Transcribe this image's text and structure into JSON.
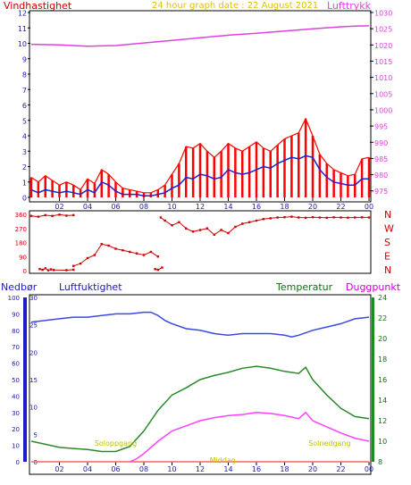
{
  "colors": {
    "wind_label": "#cc0000",
    "pressure": "#e040e0",
    "date": "#e0c000",
    "wind_avg": "#2020d0",
    "gust": "#ff0000",
    "direction": "#cc0000",
    "humidity": "#2020a0",
    "humidity_line": "#3a4ae0",
    "precip": "#1c1ccc",
    "temp": "#107010",
    "temp_line": "#2a8a2a",
    "dew": "#cc00cc",
    "dew_line": "#ff40ff",
    "sun": "#c0c000",
    "frame": "#000000"
  },
  "top_chart": {
    "title": "24 hour graph date : 22 August 2021",
    "left_label": "Vindhastighet",
    "right_label": "Lufttrykk",
    "left_ticks": [
      "12",
      "11",
      "10",
      "9",
      "8",
      "7",
      "6",
      "5",
      "4",
      "3",
      "2",
      "1",
      "0"
    ],
    "right_ticks": [
      "1030",
      "1025",
      "1020",
      "1015",
      "1010",
      "1005",
      "1000",
      "995",
      "990",
      "985",
      "980",
      "975"
    ],
    "x_ticks": [
      "02",
      "04",
      "06",
      "08",
      "10",
      "12",
      "14",
      "16",
      "18",
      "20",
      "22",
      "00"
    ]
  },
  "direction_chart": {
    "left_ticks": [
      "360",
      "270",
      "180",
      "90",
      "0"
    ],
    "right_labels": [
      "N",
      "W",
      "S",
      "E",
      "N"
    ]
  },
  "bottom_chart": {
    "precip_label": "Nedbør",
    "humidity_label": "Luftfuktighet",
    "temp_label": "Temperatur",
    "dew_label": "Duggpunkt",
    "precip_ticks": [
      "30",
      "25",
      "20",
      "15",
      "10",
      "5",
      "0"
    ],
    "humidity_ticks": [
      "100",
      "90",
      "80",
      "70",
      "60",
      "50",
      "40",
      "30",
      "20",
      "10",
      "0"
    ],
    "temp_ticks": [
      "24",
      "22",
      "20",
      "18",
      "16",
      "14",
      "12",
      "10",
      "8"
    ],
    "x_ticks": [
      "02",
      "04",
      "06",
      "08",
      "10",
      "12",
      "14",
      "16",
      "18",
      "20",
      "22",
      "00"
    ],
    "sunrise_label": "Soloppgang",
    "sunset_label": "Solnedgang",
    "midday_label": "Middag"
  },
  "chart_data": {
    "type": "line",
    "x_unit": "hour of day",
    "wind": {
      "ylim": [
        0,
        12
      ],
      "series": [
        {
          "name": "Vindhastighet",
          "x": [
            0,
            0.5,
            1,
            1.5,
            2,
            2.5,
            3,
            3.5,
            4,
            4.5,
            5,
            5.5,
            6,
            6.5,
            7,
            7.5,
            8,
            8.5,
            9,
            9.5,
            10,
            10.5,
            11,
            11.5,
            12,
            12.5,
            13,
            13.5,
            14,
            14.5,
            15,
            15.5,
            16,
            16.5,
            17,
            17.5,
            18,
            18.5,
            19,
            19.5,
            20,
            20.5,
            21,
            21.5,
            22,
            22.5,
            23,
            23.5,
            24
          ],
          "y": [
            0.5,
            0.3,
            0.5,
            0.4,
            0.3,
            0.4,
            0.3,
            0.2,
            0.5,
            0.3,
            1,
            0.8,
            0.4,
            0.2,
            0.2,
            0.2,
            0.1,
            0.1,
            0.2,
            0.3,
            0.6,
            0.8,
            1.3,
            1.2,
            1.5,
            1.4,
            1.2,
            1.3,
            1.8,
            1.6,
            1.5,
            1.6,
            1.8,
            2,
            1.9,
            2.2,
            2.4,
            2.6,
            2.5,
            2.7,
            2.6,
            1.8,
            1.3,
            1,
            0.9,
            0.8,
            0.8,
            1.2,
            1.2
          ]
        },
        {
          "name": "Vindkast",
          "x": [
            0,
            0.5,
            1,
            1.5,
            2,
            2.5,
            3,
            3.5,
            4,
            4.5,
            5,
            5.5,
            6,
            6.5,
            7,
            7.5,
            8,
            8.5,
            9,
            9.5,
            10,
            10.5,
            11,
            11.5,
            12,
            12.5,
            13,
            13.5,
            14,
            14.5,
            15,
            15.5,
            16,
            16.5,
            17,
            17.5,
            18,
            18.5,
            19,
            19.5,
            20,
            20.5,
            21,
            21.5,
            22,
            22.5,
            23,
            23.5,
            24
          ],
          "y": [
            1.3,
            1,
            1.4,
            1.1,
            0.8,
            1,
            0.8,
            0.5,
            1.2,
            0.9,
            1.8,
            1.5,
            1,
            0.6,
            0.5,
            0.4,
            0.3,
            0.3,
            0.5,
            0.8,
            1.5,
            2.2,
            3.3,
            3.2,
            3.5,
            3,
            2.6,
            3,
            3.5,
            3.2,
            3,
            3.3,
            3.6,
            3.2,
            3,
            3.4,
            3.8,
            4,
            4.2,
            5.1,
            4,
            2.8,
            2.2,
            1.8,
            1.6,
            1.4,
            1.5,
            2.5,
            2.6
          ]
        }
      ]
    },
    "pressure": {
      "ylim": [
        973,
        1030
      ],
      "name": "Lufttrykk",
      "x": [
        0,
        2,
        4,
        6,
        8,
        10,
        12,
        14,
        16,
        18,
        20,
        22,
        23,
        24
      ],
      "y": [
        1020.2,
        1020,
        1019.6,
        1019.8,
        1020.6,
        1021.4,
        1022.2,
        1023,
        1023.6,
        1024.3,
        1025,
        1025.6,
        1025.8,
        1025.9
      ]
    },
    "direction": {
      "ylim": [
        0,
        360
      ],
      "segments": [
        {
          "x": [
            0,
            0.5,
            1,
            1.5,
            2,
            2.5,
            3
          ],
          "y": [
            350,
            345,
            355,
            350,
            358,
            352,
            355
          ]
        },
        {
          "x": [
            0.6,
            0.8,
            1,
            1.2,
            1.4,
            1.6,
            2.5,
            3
          ],
          "y": [
            10,
            5,
            15,
            2,
            8,
            4,
            3,
            6
          ]
        },
        {
          "x": [
            3,
            3.5,
            4,
            4.5,
            5,
            5.5,
            6,
            6.5,
            7,
            7.5,
            8,
            8.5,
            9
          ],
          "y": [
            30,
            45,
            80,
            100,
            170,
            160,
            140,
            130,
            120,
            110,
            100,
            120,
            90
          ]
        },
        {
          "x": [
            8.8,
            9,
            9.3
          ],
          "y": [
            10,
            5,
            20
          ]
        },
        {
          "x": [
            9.2,
            9.5,
            10,
            10.5,
            11,
            11.5,
            12,
            12.5,
            13,
            13.5,
            14,
            14.5,
            15,
            15.5,
            16,
            16.5,
            17,
            17.5,
            18,
            18.5,
            19,
            19.5,
            20,
            20.5,
            21,
            21.5,
            22,
            22.5,
            23,
            23.5,
            24
          ],
          "y": [
            340,
            320,
            290,
            310,
            270,
            250,
            260,
            270,
            230,
            260,
            240,
            280,
            300,
            310,
            320,
            330,
            335,
            340,
            342,
            345,
            340,
            338,
            342,
            340,
            338,
            341,
            340,
            339,
            340,
            341,
            340
          ]
        }
      ]
    },
    "humidity": {
      "ylim": [
        0,
        100
      ],
      "name": "Luftfuktighet",
      "x": [
        0,
        1,
        2,
        3,
        4,
        5,
        6,
        7,
        8,
        8.5,
        9,
        9.5,
        10,
        11,
        12,
        13,
        14,
        15,
        16,
        17,
        18,
        18.5,
        19,
        20,
        21,
        22,
        23,
        24
      ],
      "y": [
        85,
        86,
        87,
        88,
        88,
        89,
        90,
        90,
        91,
        91,
        89,
        86,
        84,
        81,
        80,
        78,
        77,
        78,
        78,
        78,
        77,
        76,
        77,
        80,
        82,
        84,
        87,
        88
      ]
    },
    "temperature": {
      "ylim": [
        8,
        24
      ],
      "name": "Temperatur",
      "x": [
        0,
        1,
        2,
        3,
        4,
        5,
        6,
        7,
        8,
        9,
        10,
        11,
        12,
        13,
        14,
        15,
        16,
        17,
        18,
        19,
        19.5,
        20,
        21,
        22,
        23,
        24
      ],
      "y": [
        10,
        9.7,
        9.4,
        9.3,
        9.2,
        9.0,
        9.0,
        9.5,
        11,
        13,
        14.5,
        15.2,
        16,
        16.4,
        16.7,
        17.1,
        17.3,
        17.1,
        16.8,
        16.6,
        17.2,
        16.0,
        14.5,
        13.2,
        12.4,
        12.2
      ]
    },
    "dewpoint": {
      "ylim": [
        8,
        24
      ],
      "name": "Duggpunkt",
      "x": [
        7,
        7.5,
        8,
        9,
        10,
        11,
        12,
        13,
        14,
        15,
        16,
        17,
        18,
        19,
        19.5,
        20,
        21,
        22,
        23,
        24
      ],
      "y": [
        8,
        8.3,
        8.8,
        10,
        11,
        11.5,
        12,
        12.3,
        12.5,
        12.6,
        12.8,
        12.7,
        12.5,
        12.2,
        12.8,
        12.0,
        11.4,
        10.8,
        10.3,
        10.0
      ]
    },
    "precipitation": {
      "ylim": [
        0,
        30
      ],
      "name": "Nedbør",
      "x": [
        0,
        24
      ],
      "y": [
        0,
        0
      ]
    },
    "sun": {
      "sunrise": 6.0,
      "sunset": 21.2,
      "midday": 13.6
    }
  }
}
